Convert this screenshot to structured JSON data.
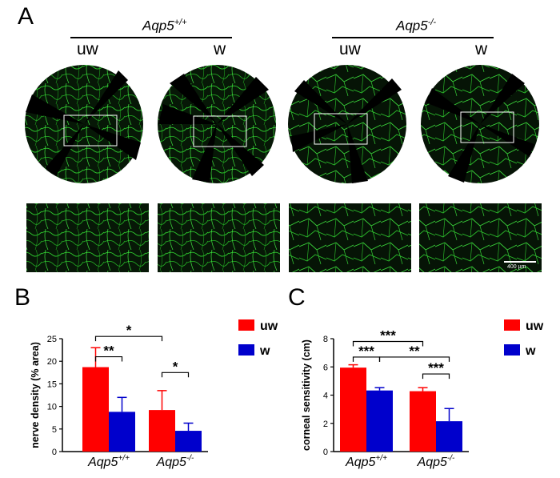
{
  "figure": {
    "panel_a": {
      "letter": "A",
      "groups": [
        {
          "label": "Aqp5",
          "sup": "+/+",
          "conditions": [
            "uw",
            "w"
          ]
        },
        {
          "label": "Aqp5",
          "sup": "-/-",
          "conditions": [
            "uw",
            "w"
          ]
        }
      ],
      "scale_bar_label": "400 µm",
      "image_color": "#39d839"
    },
    "legend": {
      "uw": "uw",
      "w": "w",
      "uw_color": "#ff0000",
      "w_color": "#0000cc"
    }
  },
  "chart_data": [
    {
      "type": "bar",
      "panel": "B",
      "ylabel": "nerve density (% area)",
      "ylim": [
        0,
        25
      ],
      "yticks": [
        0,
        5,
        10,
        15,
        20,
        25
      ],
      "groups": [
        {
          "label": "Aqp5",
          "sup": "+/+"
        },
        {
          "label": "Aqp5",
          "sup": "-/-"
        }
      ],
      "series": [
        {
          "name": "uw",
          "color": "#ff0000",
          "values": [
            18.7,
            9.2
          ],
          "errors": [
            4.3,
            4.3
          ]
        },
        {
          "name": "w",
          "color": "#0000cc",
          "values": [
            8.8,
            4.6
          ],
          "errors": [
            3.2,
            1.7
          ]
        }
      ],
      "annotations": [
        {
          "label": "**",
          "from": [
            0,
            0
          ],
          "to": [
            0,
            1
          ],
          "y": 21.0
        },
        {
          "label": "*",
          "from": [
            0,
            0
          ],
          "to": [
            1,
            0
          ],
          "y": 25.5
        },
        {
          "label": "*",
          "from": [
            1,
            0
          ],
          "to": [
            1,
            1
          ],
          "y": 17.5
        }
      ]
    },
    {
      "type": "bar",
      "panel": "C",
      "ylabel": "corneal sensitivity (cm)",
      "ylim": [
        0,
        8
      ],
      "yticks": [
        0,
        2,
        4,
        6,
        8
      ],
      "groups": [
        {
          "label": "Aqp5",
          "sup": "+/+"
        },
        {
          "label": "Aqp5",
          "sup": "-/-"
        }
      ],
      "series": [
        {
          "name": "uw",
          "color": "#ff0000",
          "values": [
            5.95,
            4.28
          ],
          "errors": [
            0.2,
            0.25
          ]
        },
        {
          "name": "w",
          "color": "#0000cc",
          "values": [
            4.33,
            2.15
          ],
          "errors": [
            0.2,
            0.9
          ]
        }
      ],
      "annotations": [
        {
          "label": "***",
          "from": [
            0,
            0
          ],
          "to": [
            0,
            1
          ],
          "y": 6.7
        },
        {
          "label": "***",
          "from": [
            0,
            0
          ],
          "to": [
            1,
            0
          ],
          "y": 7.8
        },
        {
          "label": "**",
          "from": [
            0,
            1
          ],
          "to": [
            1,
            1
          ],
          "y": 6.7
        },
        {
          "label": "***",
          "from": [
            1,
            0
          ],
          "to": [
            1,
            1
          ],
          "y": 5.5
        }
      ]
    }
  ]
}
